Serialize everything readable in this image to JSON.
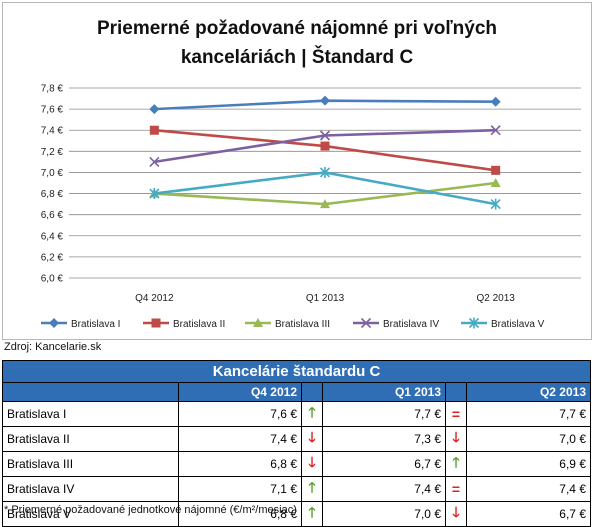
{
  "chart_data": {
    "type": "line",
    "title_lines": [
      "Priemerné požadované nájomné pri voľných",
      "kanceláriách | Štandard C"
    ],
    "categories": [
      "Q4 2012",
      "Q1 2013",
      "Q2 2013"
    ],
    "y_ticks": [
      "7,8 €",
      "7,6 €",
      "7,4 €",
      "7,2 €",
      "7,0 €",
      "6,8 €",
      "6,6 €",
      "6,4 €",
      "6,2 €",
      "6,0 €"
    ],
    "ylim": [
      6.0,
      7.8
    ],
    "grid": true,
    "legend_position": "bottom",
    "series": [
      {
        "name": "Bratislava I",
        "values": [
          7.6,
          7.68,
          7.67
        ],
        "color": "#4a7ebb",
        "marker": "diamond"
      },
      {
        "name": "Bratislava II",
        "values": [
          7.4,
          7.25,
          7.02
        ],
        "color": "#be4b48",
        "marker": "square"
      },
      {
        "name": "Bratislava III",
        "values": [
          6.8,
          6.7,
          6.9
        ],
        "color": "#98b954",
        "marker": "triangle"
      },
      {
        "name": "Bratislava IV",
        "values": [
          7.1,
          7.35,
          7.4
        ],
        "color": "#7d60a0",
        "marker": "x"
      },
      {
        "name": "Bratislava V",
        "values": [
          6.8,
          7.0,
          6.7
        ],
        "color": "#46aac5",
        "marker": "star"
      }
    ]
  },
  "source": "Zdroj: Kancelarie.sk",
  "table": {
    "title": "Kancelárie štandardu C",
    "headers": [
      "Q4 2012",
      "Q1 2013",
      "Q2 2013"
    ],
    "rows": [
      {
        "label": "Bratislava I",
        "q4": "7,6 €",
        "t1": "up",
        "q1": "7,7 €",
        "t2": "same",
        "q2": "7,7 €"
      },
      {
        "label": "Bratislava II",
        "q4": "7,4 €",
        "t1": "down",
        "q1": "7,3 €",
        "t2": "down",
        "q2": "7,0 €"
      },
      {
        "label": "Bratislava III",
        "q4": "6,8 €",
        "t1": "down",
        "q1": "6,7 €",
        "t2": "up",
        "q2": "6,9 €"
      },
      {
        "label": "Bratislava IV",
        "q4": "7,1 €",
        "t1": "up",
        "q1": "7,4 €",
        "t2": "same",
        "q2": "7,4 €"
      },
      {
        "label": "Bratislava V",
        "q4": "6,8 €",
        "t1": "up",
        "q1": "7,0 €",
        "t2": "down",
        "q2": "6,7 €"
      }
    ],
    "trend_symbols": {
      "up": "🡑",
      "down": "🡓",
      "same": "="
    }
  },
  "footnote": "* Priemerné požadované jednotkové nájomné (€/m²/mesiac)"
}
